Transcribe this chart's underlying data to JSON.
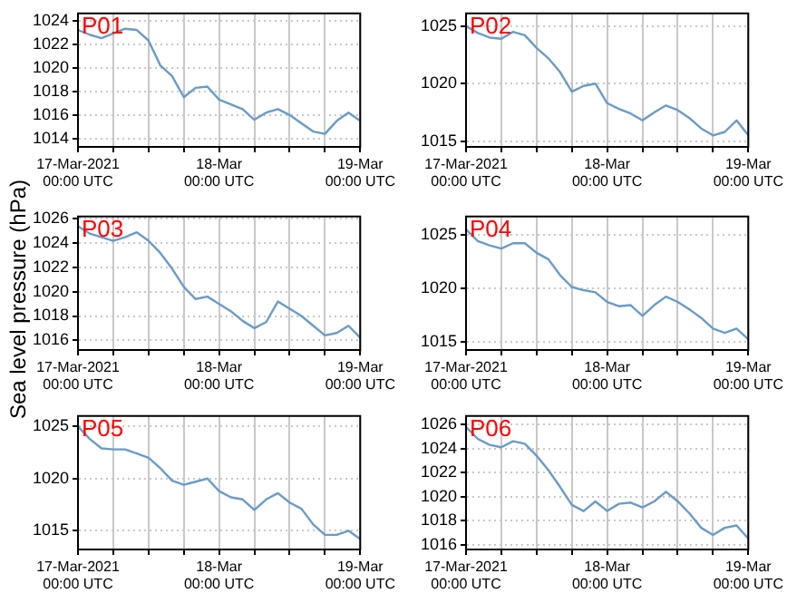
{
  "chart_data": [
    {
      "type": "line",
      "annotations": [
        "P01"
      ],
      "grid": true,
      "xlim": [
        "2021-03-17T00:00",
        "2021-03-19T00:00"
      ],
      "ylim": [
        1013.3,
        1024.6
      ],
      "yticks": [
        1014,
        1016,
        1018,
        1020,
        1022,
        1024
      ],
      "xticks": [
        {
          "value": "2021-03-17T00:00",
          "label": "17-Mar-2021\n00:00 UTC"
        },
        {
          "value": "2021-03-17T06:00",
          "label": null
        },
        {
          "value": "2021-03-17T12:00",
          "label": null
        },
        {
          "value": "2021-03-17T18:00",
          "label": null
        },
        {
          "value": "2021-03-18T00:00",
          "label": "18-Mar\n00:00 UTC"
        },
        {
          "value": "2021-03-18T06:00",
          "label": null
        },
        {
          "value": "2021-03-18T12:00",
          "label": null
        },
        {
          "value": "2021-03-18T18:00",
          "label": null
        },
        {
          "value": "2021-03-19T00:00",
          "label": "19-Mar\n00:00 UTC"
        }
      ],
      "x": [
        "2021-03-17T00:00",
        "2021-03-17T02:00",
        "2021-03-17T04:00",
        "2021-03-17T06:00",
        "2021-03-17T08:00",
        "2021-03-17T10:00",
        "2021-03-17T12:00",
        "2021-03-17T14:00",
        "2021-03-17T16:00",
        "2021-03-17T18:00",
        "2021-03-17T20:00",
        "2021-03-17T22:00",
        "2021-03-18T00:00",
        "2021-03-18T02:00",
        "2021-03-18T04:00",
        "2021-03-18T06:00",
        "2021-03-18T08:00",
        "2021-03-18T10:00",
        "2021-03-18T12:00",
        "2021-03-18T14:00",
        "2021-03-18T16:00",
        "2021-03-18T18:00",
        "2021-03-18T20:00",
        "2021-03-18T22:00",
        "2021-03-19T00:00"
      ],
      "series": [
        {
          "color": "#6a9bc8",
          "values": [
            1023.2,
            1022.8,
            1022.5,
            1022.9,
            1023.3,
            1023.2,
            1022.3,
            1020.2,
            1019.3,
            1017.5,
            1018.3,
            1018.4,
            1017.3,
            1016.9,
            1016.5,
            1015.6,
            1016.2,
            1016.5,
            1016.0,
            1015.3,
            1014.6,
            1014.4,
            1015.5,
            1016.2,
            1015.5
          ]
        }
      ]
    },
    {
      "type": "line",
      "annotations": [
        "P02"
      ],
      "grid": true,
      "xlim": [
        "2021-03-17T00:00",
        "2021-03-19T00:00"
      ],
      "ylim": [
        1014.5,
        1026.1
      ],
      "yticks": [
        1015,
        1020,
        1025
      ],
      "xticks": [
        {
          "value": "2021-03-17T00:00",
          "label": "17-Mar-2021\n00:00 UTC"
        },
        {
          "value": "2021-03-17T06:00",
          "label": null
        },
        {
          "value": "2021-03-17T12:00",
          "label": null
        },
        {
          "value": "2021-03-17T18:00",
          "label": null
        },
        {
          "value": "2021-03-18T00:00",
          "label": "18-Mar\n00:00 UTC"
        },
        {
          "value": "2021-03-18T06:00",
          "label": null
        },
        {
          "value": "2021-03-18T12:00",
          "label": null
        },
        {
          "value": "2021-03-18T18:00",
          "label": null
        },
        {
          "value": "2021-03-19T00:00",
          "label": "19-Mar\n00:00 UTC"
        }
      ],
      "x": [
        "2021-03-17T00:00",
        "2021-03-17T02:00",
        "2021-03-17T04:00",
        "2021-03-17T06:00",
        "2021-03-17T08:00",
        "2021-03-17T10:00",
        "2021-03-17T12:00",
        "2021-03-17T14:00",
        "2021-03-17T16:00",
        "2021-03-17T18:00",
        "2021-03-17T20:00",
        "2021-03-17T22:00",
        "2021-03-18T00:00",
        "2021-03-18T02:00",
        "2021-03-18T04:00",
        "2021-03-18T06:00",
        "2021-03-18T08:00",
        "2021-03-18T10:00",
        "2021-03-18T12:00",
        "2021-03-18T14:00",
        "2021-03-18T16:00",
        "2021-03-18T18:00",
        "2021-03-18T20:00",
        "2021-03-18T22:00",
        "2021-03-19T00:00"
      ],
      "series": [
        {
          "color": "#6a9bc8",
          "values": [
            1025.0,
            1024.4,
            1024.0,
            1023.9,
            1024.5,
            1024.2,
            1023.1,
            1022.2,
            1021.0,
            1019.3,
            1019.8,
            1020.0,
            1018.3,
            1017.8,
            1017.4,
            1016.8,
            1017.5,
            1018.1,
            1017.7,
            1017.0,
            1016.1,
            1015.5,
            1015.8,
            1016.8,
            1015.5
          ]
        }
      ]
    },
    {
      "type": "line",
      "annotations": [
        "P03"
      ],
      "ylabel": "Sea level pressure (hPa)",
      "grid": true,
      "xlim": [
        "2021-03-17T00:00",
        "2021-03-19T00:00"
      ],
      "ylim": [
        1015.2,
        1026.2
      ],
      "yticks": [
        1016,
        1018,
        1020,
        1022,
        1024,
        1026
      ],
      "xticks": [
        {
          "value": "2021-03-17T00:00",
          "label": "17-Mar-2021\n00:00 UTC"
        },
        {
          "value": "2021-03-17T06:00",
          "label": null
        },
        {
          "value": "2021-03-17T12:00",
          "label": null
        },
        {
          "value": "2021-03-17T18:00",
          "label": null
        },
        {
          "value": "2021-03-18T00:00",
          "label": "18-Mar\n00:00 UTC"
        },
        {
          "value": "2021-03-18T06:00",
          "label": null
        },
        {
          "value": "2021-03-18T12:00",
          "label": null
        },
        {
          "value": "2021-03-18T18:00",
          "label": null
        },
        {
          "value": "2021-03-19T00:00",
          "label": "19-Mar\n00:00 UTC"
        }
      ],
      "x": [
        "2021-03-17T00:00",
        "2021-03-17T02:00",
        "2021-03-17T04:00",
        "2021-03-17T06:00",
        "2021-03-17T08:00",
        "2021-03-17T10:00",
        "2021-03-17T12:00",
        "2021-03-17T14:00",
        "2021-03-17T16:00",
        "2021-03-17T18:00",
        "2021-03-17T20:00",
        "2021-03-17T22:00",
        "2021-03-18T00:00",
        "2021-03-18T02:00",
        "2021-03-18T04:00",
        "2021-03-18T06:00",
        "2021-03-18T08:00",
        "2021-03-18T10:00",
        "2021-03-18T12:00",
        "2021-03-18T14:00",
        "2021-03-18T16:00",
        "2021-03-18T18:00",
        "2021-03-18T20:00",
        "2021-03-18T22:00",
        "2021-03-19T00:00"
      ],
      "series": [
        {
          "color": "#6a9bc8",
          "values": [
            1025.4,
            1024.8,
            1024.5,
            1024.2,
            1024.5,
            1024.9,
            1024.2,
            1023.2,
            1021.9,
            1020.4,
            1019.4,
            1019.6,
            1019.0,
            1018.4,
            1017.6,
            1017.0,
            1017.5,
            1019.2,
            1018.6,
            1018.0,
            1017.2,
            1016.4,
            1016.6,
            1017.2,
            1016.2
          ]
        }
      ]
    },
    {
      "type": "line",
      "annotations": [
        "P04"
      ],
      "grid": true,
      "xlim": [
        "2021-03-17T00:00",
        "2021-03-19T00:00"
      ],
      "ylim": [
        1014.2,
        1026.7
      ],
      "yticks": [
        1015,
        1020,
        1025
      ],
      "xticks": [
        {
          "value": "2021-03-17T00:00",
          "label": "17-Mar-2021\n00:00 UTC"
        },
        {
          "value": "2021-03-17T06:00",
          "label": null
        },
        {
          "value": "2021-03-17T12:00",
          "label": null
        },
        {
          "value": "2021-03-17T18:00",
          "label": null
        },
        {
          "value": "2021-03-18T00:00",
          "label": "18-Mar\n00:00 UTC"
        },
        {
          "value": "2021-03-18T06:00",
          "label": null
        },
        {
          "value": "2021-03-18T12:00",
          "label": null
        },
        {
          "value": "2021-03-18T18:00",
          "label": null
        },
        {
          "value": "2021-03-19T00:00",
          "label": "19-Mar\n00:00 UTC"
        }
      ],
      "x": [
        "2021-03-17T00:00",
        "2021-03-17T02:00",
        "2021-03-17T04:00",
        "2021-03-17T06:00",
        "2021-03-17T08:00",
        "2021-03-17T10:00",
        "2021-03-17T12:00",
        "2021-03-17T14:00",
        "2021-03-17T16:00",
        "2021-03-17T18:00",
        "2021-03-17T20:00",
        "2021-03-17T22:00",
        "2021-03-18T00:00",
        "2021-03-18T02:00",
        "2021-03-18T04:00",
        "2021-03-18T06:00",
        "2021-03-18T08:00",
        "2021-03-18T10:00",
        "2021-03-18T12:00",
        "2021-03-18T14:00",
        "2021-03-18T16:00",
        "2021-03-18T18:00",
        "2021-03-18T20:00",
        "2021-03-18T22:00",
        "2021-03-19T00:00"
      ],
      "series": [
        {
          "color": "#6a9bc8",
          "values": [
            1025.5,
            1024.4,
            1024.0,
            1023.7,
            1024.2,
            1024.2,
            1023.3,
            1022.7,
            1021.2,
            1020.1,
            1019.8,
            1019.6,
            1018.7,
            1018.3,
            1018.4,
            1017.4,
            1018.4,
            1019.2,
            1018.7,
            1018.0,
            1017.2,
            1016.2,
            1015.8,
            1016.2,
            1015.2
          ]
        }
      ]
    },
    {
      "type": "line",
      "annotations": [
        "P05"
      ],
      "grid": true,
      "xlim": [
        "2021-03-17T00:00",
        "2021-03-19T00:00"
      ],
      "ylim": [
        1013.2,
        1026.0
      ],
      "yticks": [
        1015,
        1020,
        1025
      ],
      "xticks": [
        {
          "value": "2021-03-17T00:00",
          "label": "17-Mar-2021\n00:00 UTC"
        },
        {
          "value": "2021-03-17T06:00",
          "label": null
        },
        {
          "value": "2021-03-17T12:00",
          "label": null
        },
        {
          "value": "2021-03-17T18:00",
          "label": null
        },
        {
          "value": "2021-03-18T00:00",
          "label": "18-Mar\n00:00 UTC"
        },
        {
          "value": "2021-03-18T06:00",
          "label": null
        },
        {
          "value": "2021-03-18T12:00",
          "label": null
        },
        {
          "value": "2021-03-18T18:00",
          "label": null
        },
        {
          "value": "2021-03-19T00:00",
          "label": "19-Mar\n00:00 UTC"
        }
      ],
      "x": [
        "2021-03-17T00:00",
        "2021-03-17T02:00",
        "2021-03-17T04:00",
        "2021-03-17T06:00",
        "2021-03-17T08:00",
        "2021-03-17T10:00",
        "2021-03-17T12:00",
        "2021-03-17T14:00",
        "2021-03-17T16:00",
        "2021-03-17T18:00",
        "2021-03-17T20:00",
        "2021-03-17T22:00",
        "2021-03-18T00:00",
        "2021-03-18T02:00",
        "2021-03-18T04:00",
        "2021-03-18T06:00",
        "2021-03-18T08:00",
        "2021-03-18T10:00",
        "2021-03-18T12:00",
        "2021-03-18T14:00",
        "2021-03-18T16:00",
        "2021-03-18T18:00",
        "2021-03-18T20:00",
        "2021-03-18T22:00",
        "2021-03-19T00:00"
      ],
      "series": [
        {
          "color": "#6a9bc8",
          "values": [
            1025.0,
            1023.8,
            1022.9,
            1022.8,
            1022.8,
            1022.4,
            1022.0,
            1021.0,
            1019.8,
            1019.4,
            1019.7,
            1020.0,
            1018.8,
            1018.2,
            1018.0,
            1017.0,
            1018.0,
            1018.6,
            1017.7,
            1017.1,
            1015.6,
            1014.6,
            1014.6,
            1015.0,
            1014.2
          ]
        }
      ]
    },
    {
      "type": "line",
      "annotations": [
        "P06"
      ],
      "grid": true,
      "xlim": [
        "2021-03-17T00:00",
        "2021-03-19T00:00"
      ],
      "ylim": [
        1015.6,
        1026.7
      ],
      "yticks": [
        1016,
        1018,
        1020,
        1022,
        1024,
        1026
      ],
      "xticks": [
        {
          "value": "2021-03-17T00:00",
          "label": "17-Mar-2021\n00:00 UTC"
        },
        {
          "value": "2021-03-17T06:00",
          "label": null
        },
        {
          "value": "2021-03-17T12:00",
          "label": null
        },
        {
          "value": "2021-03-17T18:00",
          "label": null
        },
        {
          "value": "2021-03-18T00:00",
          "label": "18-Mar\n00:00 UTC"
        },
        {
          "value": "2021-03-18T06:00",
          "label": null
        },
        {
          "value": "2021-03-18T12:00",
          "label": null
        },
        {
          "value": "2021-03-18T18:00",
          "label": null
        },
        {
          "value": "2021-03-19T00:00",
          "label": "19-Mar\n00:00 UTC"
        }
      ],
      "x": [
        "2021-03-17T00:00",
        "2021-03-17T02:00",
        "2021-03-17T04:00",
        "2021-03-17T06:00",
        "2021-03-17T08:00",
        "2021-03-17T10:00",
        "2021-03-17T12:00",
        "2021-03-17T14:00",
        "2021-03-17T16:00",
        "2021-03-17T18:00",
        "2021-03-17T20:00",
        "2021-03-17T22:00",
        "2021-03-18T00:00",
        "2021-03-18T02:00",
        "2021-03-18T04:00",
        "2021-03-18T06:00",
        "2021-03-18T08:00",
        "2021-03-18T10:00",
        "2021-03-18T12:00",
        "2021-03-18T14:00",
        "2021-03-18T16:00",
        "2021-03-18T18:00",
        "2021-03-18T20:00",
        "2021-03-18T22:00",
        "2021-03-19T00:00"
      ],
      "series": [
        {
          "color": "#6a9bc8",
          "values": [
            1025.8,
            1024.8,
            1024.3,
            1024.1,
            1024.6,
            1024.4,
            1023.4,
            1022.2,
            1020.8,
            1019.3,
            1018.8,
            1019.6,
            1018.8,
            1019.4,
            1019.5,
            1019.1,
            1019.6,
            1020.4,
            1019.6,
            1018.6,
            1017.4,
            1016.8,
            1017.4,
            1017.6,
            1016.5
          ]
        }
      ]
    }
  ]
}
